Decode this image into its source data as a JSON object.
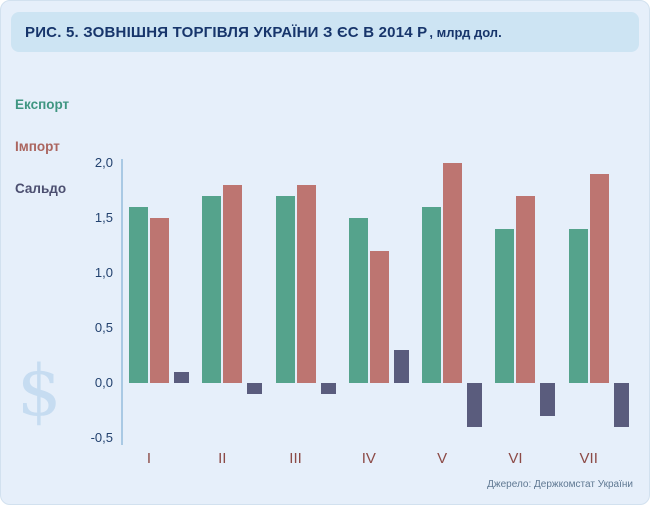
{
  "header": {
    "title": "РИС. 5. ЗОВНІШНЯ ТОРГІВЛЯ УКРАЇНИ З ЄС В 2014 Р",
    "units": ", млрд дол."
  },
  "legend": {
    "items": [
      {
        "key": "eksport",
        "label": "Експорт",
        "color": "#3f9681"
      },
      {
        "key": "import",
        "label": "Імпорт",
        "color": "#ab655f"
      },
      {
        "key": "saldo",
        "label": "Сальдо",
        "color": "#4c4f70"
      }
    ]
  },
  "watermark": {
    "symbol": "$"
  },
  "footer": {
    "source": "Джерело: Держкомстат України"
  },
  "chart_data": {
    "type": "bar",
    "title": "РИС. 5. ЗОВНІШНЯ ТОРГІВЛЯ УКРАЇНИ З ЄС В 2014 Р, млрд дол.",
    "categories": [
      "I",
      "II",
      "III",
      "IV",
      "V",
      "VI",
      "VII"
    ],
    "series": [
      {
        "key": "eksport",
        "name": "Експорт",
        "color": "#55a38c",
        "values": [
          1.6,
          1.7,
          1.7,
          1.5,
          1.6,
          1.4,
          1.4
        ]
      },
      {
        "key": "import",
        "name": "Імпорт",
        "color": "#bd7571",
        "values": [
          1.5,
          1.8,
          1.8,
          1.2,
          2.0,
          1.7,
          1.9
        ]
      },
      {
        "key": "saldo",
        "name": "Сальдо",
        "color": "#5a5c7d",
        "values": [
          0.1,
          -0.1,
          -0.1,
          0.3,
          -0.4,
          -0.3,
          -0.4
        ]
      }
    ],
    "ylim": [
      -0.5,
      2.0
    ],
    "ytick_values": [
      2.0,
      1.5,
      1.0,
      0.5,
      0.0,
      -0.5
    ],
    "ytick_labels": [
      "2,0",
      "1,5",
      "1,0",
      "0,5",
      "0,0",
      "-0,5"
    ],
    "xlabel": "",
    "ylabel": "",
    "legend_position": "left",
    "grid": false
  }
}
